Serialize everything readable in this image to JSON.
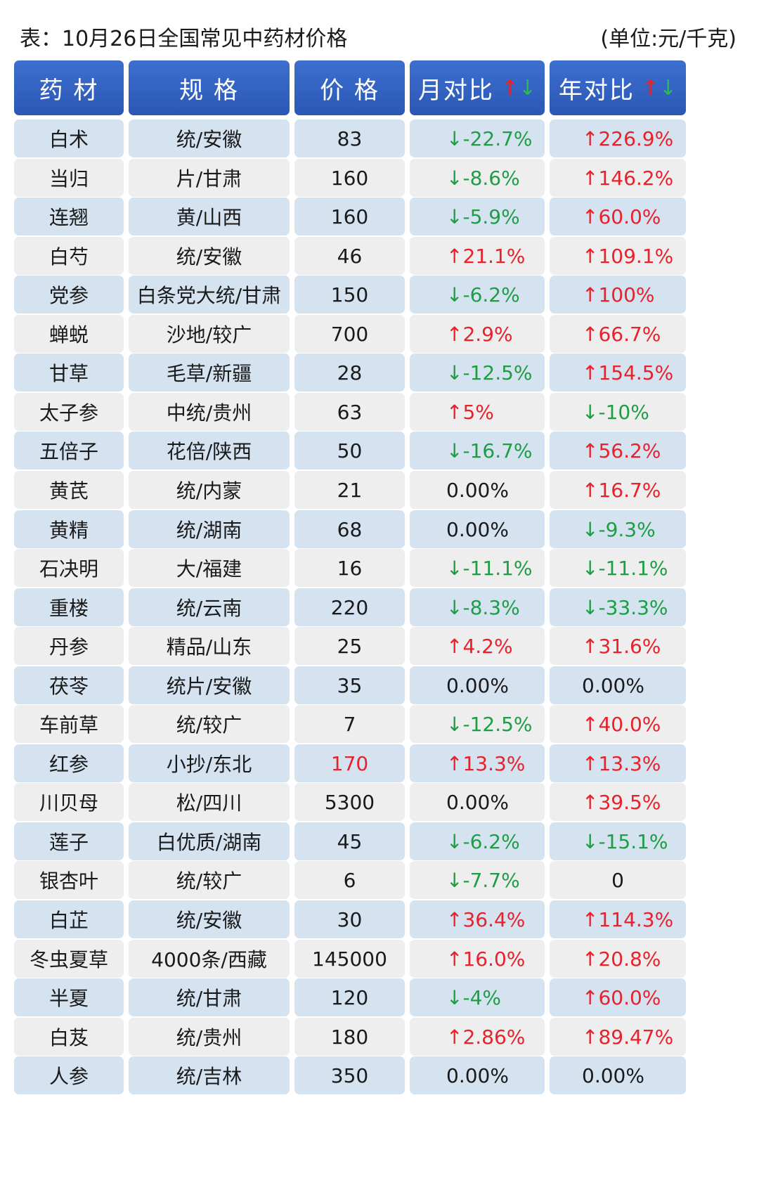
{
  "title": "表：10月26日全国常见中药材价格",
  "unit": "(单位:元/千克)",
  "colors": {
    "header_bg": "#2f5fc0",
    "row_odd": "#d5e3f1",
    "row_even": "#eeeeee",
    "up": "#e8212b",
    "down": "#1f9d44"
  },
  "headers": {
    "name": "药 材",
    "spec": "规 格",
    "price": "价 格",
    "month": "月对比",
    "year": "年对比",
    "up_arrow": "↑",
    "down_arrow": "↓"
  },
  "rows": [
    {
      "name": "白术",
      "spec": "统/安徽",
      "price": "83",
      "month": "↓-22.7%",
      "month_dir": "down",
      "year": "↑226.9%",
      "year_dir": "up"
    },
    {
      "name": "当归",
      "spec": "片/甘肃",
      "price": "160",
      "month": "↓-8.6%",
      "month_dir": "down",
      "year": "↑146.2%",
      "year_dir": "up"
    },
    {
      "name": "连翘",
      "spec": "黄/山西",
      "price": "160",
      "month": "↓-5.9%",
      "month_dir": "down",
      "year": "↑60.0%",
      "year_dir": "up"
    },
    {
      "name": "白芍",
      "spec": "统/安徽",
      "price": "46",
      "month": "↑21.1%",
      "month_dir": "up",
      "year": "↑109.1%",
      "year_dir": "up"
    },
    {
      "name": "党参",
      "spec": "白条党大统/甘肃",
      "price": "150",
      "month": "↓-6.2%",
      "month_dir": "down",
      "year": "↑100%",
      "year_dir": "up"
    },
    {
      "name": "蝉蜕",
      "spec": "沙地/较广",
      "price": "700",
      "month": "↑2.9%",
      "month_dir": "up",
      "year": "↑66.7%",
      "year_dir": "up"
    },
    {
      "name": "甘草",
      "spec": "毛草/新疆",
      "price": "28",
      "month": "↓-12.5%",
      "month_dir": "down",
      "year": "↑154.5%",
      "year_dir": "up"
    },
    {
      "name": "太子参",
      "spec": "中统/贵州",
      "price": "63",
      "month": "↑5%",
      "month_dir": "up",
      "year": "↓-10%",
      "year_dir": "down"
    },
    {
      "name": "五倍子",
      "spec": "花倍/陕西",
      "price": "50",
      "month": "↓-16.7%",
      "month_dir": "down",
      "year": "↑56.2%",
      "year_dir": "up"
    },
    {
      "name": "黄芪",
      "spec": "统/内蒙",
      "price": "21",
      "month": "0.00%",
      "month_dir": "flat",
      "year": "↑16.7%",
      "year_dir": "up"
    },
    {
      "name": "黄精",
      "spec": "统/湖南",
      "price": "68",
      "month": "0.00%",
      "month_dir": "flat",
      "year": "↓-9.3%",
      "year_dir": "down"
    },
    {
      "name": "石决明",
      "spec": "大/福建",
      "price": "16",
      "month": "↓-11.1%",
      "month_dir": "down",
      "year": "↓-11.1%",
      "year_dir": "down"
    },
    {
      "name": "重楼",
      "spec": "统/云南",
      "price": "220",
      "month": "↓-8.3%",
      "month_dir": "down",
      "year": "↓-33.3%",
      "year_dir": "down"
    },
    {
      "name": "丹参",
      "spec": "精品/山东",
      "price": "25",
      "month": "↑4.2%",
      "month_dir": "up",
      "year": "↑31.6%",
      "year_dir": "up"
    },
    {
      "name": "茯苓",
      "spec": "统片/安徽",
      "price": "35",
      "month": "0.00%",
      "month_dir": "flat",
      "year": "0.00%",
      "year_dir": "flat"
    },
    {
      "name": "车前草",
      "spec": "统/较广",
      "price": "7",
      "month": "↓-12.5%",
      "month_dir": "down",
      "year": "↑40.0%",
      "year_dir": "up"
    },
    {
      "name": "红参",
      "spec": "小抄/东北",
      "price": "170",
      "price_highlight": true,
      "month": "↑13.3%",
      "month_dir": "up",
      "year": "↑13.3%",
      "year_dir": "up"
    },
    {
      "name": "川贝母",
      "spec": "松/四川",
      "price": "5300",
      "month": "0.00%",
      "month_dir": "flat",
      "year": "↑39.5%",
      "year_dir": "up"
    },
    {
      "name": "莲子",
      "spec": "白优质/湖南",
      "price": "45",
      "month": "↓-6.2%",
      "month_dir": "down",
      "year": "↓-15.1%",
      "year_dir": "down"
    },
    {
      "name": "银杏叶",
      "spec": "统/较广",
      "price": "6",
      "month": "↓-7.7%",
      "month_dir": "down",
      "year": "0",
      "year_dir": "flat",
      "year_center": true
    },
    {
      "name": "白芷",
      "spec": "统/安徽",
      "price": "30",
      "month": "↑36.4%",
      "month_dir": "up",
      "year": "↑114.3%",
      "year_dir": "up"
    },
    {
      "name": "冬虫夏草",
      "spec": "4000条/西藏",
      "price": "145000",
      "month": "↑16.0%",
      "month_dir": "up",
      "year": "↑20.8%",
      "year_dir": "up"
    },
    {
      "name": "半夏",
      "spec": "统/甘肃",
      "price": "120",
      "month": "↓-4%",
      "month_dir": "down",
      "year": "↑60.0%",
      "year_dir": "up"
    },
    {
      "name": "白芨",
      "spec": "统/贵州",
      "price": "180",
      "month": "↑2.86%",
      "month_dir": "up",
      "year": "↑89.47%",
      "year_dir": "up"
    },
    {
      "name": "人参",
      "spec": "统/吉林",
      "price": "350",
      "month": "0.00%",
      "month_dir": "flat",
      "year": "0.00%",
      "year_dir": "flat"
    }
  ]
}
